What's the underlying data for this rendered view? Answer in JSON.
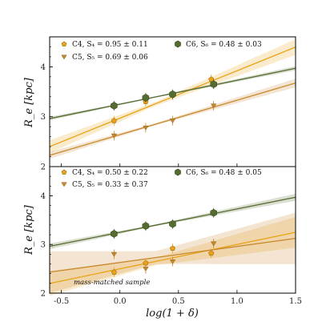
{
  "chart_data": [
    {
      "type": "scatter",
      "panel": "top",
      "ylabel": "R_e [kpc]",
      "xlim": [
        -0.6,
        1.5
      ],
      "ylim": [
        2,
        4.6
      ],
      "yticks": [
        2,
        3,
        4
      ],
      "series": [
        {
          "name": "C4",
          "legend_label": "C4,  S₄ = 0.95 ± 0.11",
          "marker": "pentagon",
          "color": "#e8a317",
          "x": [
            -0.05,
            0.22,
            0.45,
            0.78
          ],
          "y": [
            2.92,
            3.3,
            3.43,
            3.75
          ],
          "fit": {
            "slope": 0.95,
            "intercept": 2.97,
            "band": 0.11
          }
        },
        {
          "name": "C5",
          "legend_label": "C5,  S₅ = 0.69 ± 0.06",
          "marker": "triangle-down",
          "color": "#c8892e",
          "x": [
            -0.05,
            0.22,
            0.45,
            0.8
          ],
          "y": [
            2.62,
            2.78,
            2.92,
            3.22
          ],
          "fit": {
            "slope": 0.69,
            "intercept": 2.64,
            "band": 0.06
          }
        },
        {
          "name": "C6",
          "legend_label": "C6,  S₆ = 0.48 ± 0.03",
          "marker": "hexagon",
          "color": "#556b2f",
          "x": [
            -0.05,
            0.22,
            0.45,
            0.8
          ],
          "y": [
            3.22,
            3.38,
            3.45,
            3.65
          ],
          "fit": {
            "slope": 0.48,
            "intercept": 3.25,
            "band": 0.03
          }
        }
      ]
    },
    {
      "type": "scatter",
      "panel": "bottom",
      "ylabel": "R_e [kpc]",
      "xlabel": "log(1 + δ)",
      "xlim": [
        -0.6,
        1.5
      ],
      "ylim": [
        2,
        4.6
      ],
      "yticks": [
        2,
        3,
        4
      ],
      "xticks": [
        -0.5,
        0.0,
        0.5,
        1.0,
        1.5
      ],
      "annotation": "mass-matched sample",
      "series": [
        {
          "name": "C4",
          "legend_label": "C4,  S₄ = 0.50 ± 0.22",
          "marker": "pentagon",
          "color": "#e8a317",
          "x": [
            -0.05,
            0.22,
            0.45,
            0.78
          ],
          "y": [
            2.43,
            2.62,
            2.92,
            2.82
          ],
          "fit": {
            "slope": 0.5,
            "intercept": 2.5,
            "band": 0.22
          }
        },
        {
          "name": "C5",
          "legend_label": "C5,  S₅ = 0.33 ± 0.37",
          "marker": "triangle-down",
          "color": "#c8892e",
          "x": [
            -0.05,
            0.22,
            0.45,
            0.8
          ],
          "y": [
            2.8,
            2.5,
            2.65,
            3.02
          ],
          "fit": {
            "slope": 0.33,
            "intercept": 2.63,
            "band": 0.37
          }
        },
        {
          "name": "C6",
          "legend_label": "C6,  S₆ = 0.48 ± 0.05",
          "marker": "hexagon",
          "color": "#556b2f",
          "x": [
            -0.05,
            0.22,
            0.45,
            0.8
          ],
          "y": [
            3.22,
            3.38,
            3.42,
            3.65
          ],
          "fit": {
            "slope": 0.48,
            "intercept": 3.25,
            "band": 0.05
          }
        }
      ]
    }
  ],
  "labels": {
    "xlabel": "log(1 + δ)",
    "ylabel_top": "R_e [kpc]",
    "ylabel_bottom": "R_e [kpc]",
    "annotation": "mass-matched sample"
  }
}
